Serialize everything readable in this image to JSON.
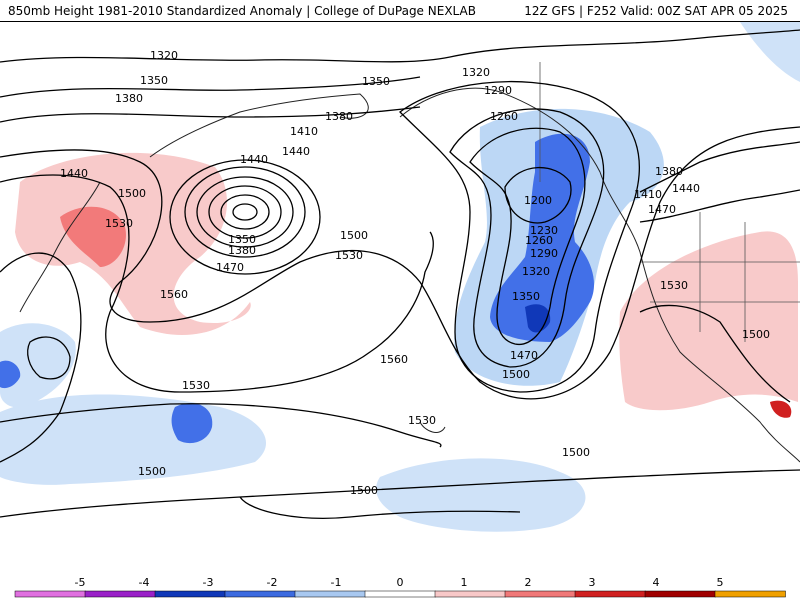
{
  "header": {
    "title_left": "850mb Height 1981-2010 Standardized Anomaly | College of DuPage NEXLAB",
    "title_right": "12Z GFS | F252 Valid: 00Z SAT APR 05 2025"
  },
  "map": {
    "contour_labels": [
      "1200",
      "1230",
      "1260",
      "1290",
      "1320",
      "1350",
      "1380",
      "1410",
      "1440",
      "1470",
      "1500",
      "1530",
      "1560"
    ]
  },
  "legend": {
    "ticks": [
      "-5",
      "-4",
      "-3",
      "-2",
      "-1",
      "0",
      "1",
      "2",
      "3",
      "4",
      "5"
    ],
    "colors": [
      "#e070e0",
      "#9a20c8",
      "#1038b8",
      "#3c6be0",
      "#a8c8f0",
      "#ffffff",
      "#f8c8c8",
      "#f07878",
      "#d02020",
      "#a00000",
      "#f0a000"
    ]
  }
}
